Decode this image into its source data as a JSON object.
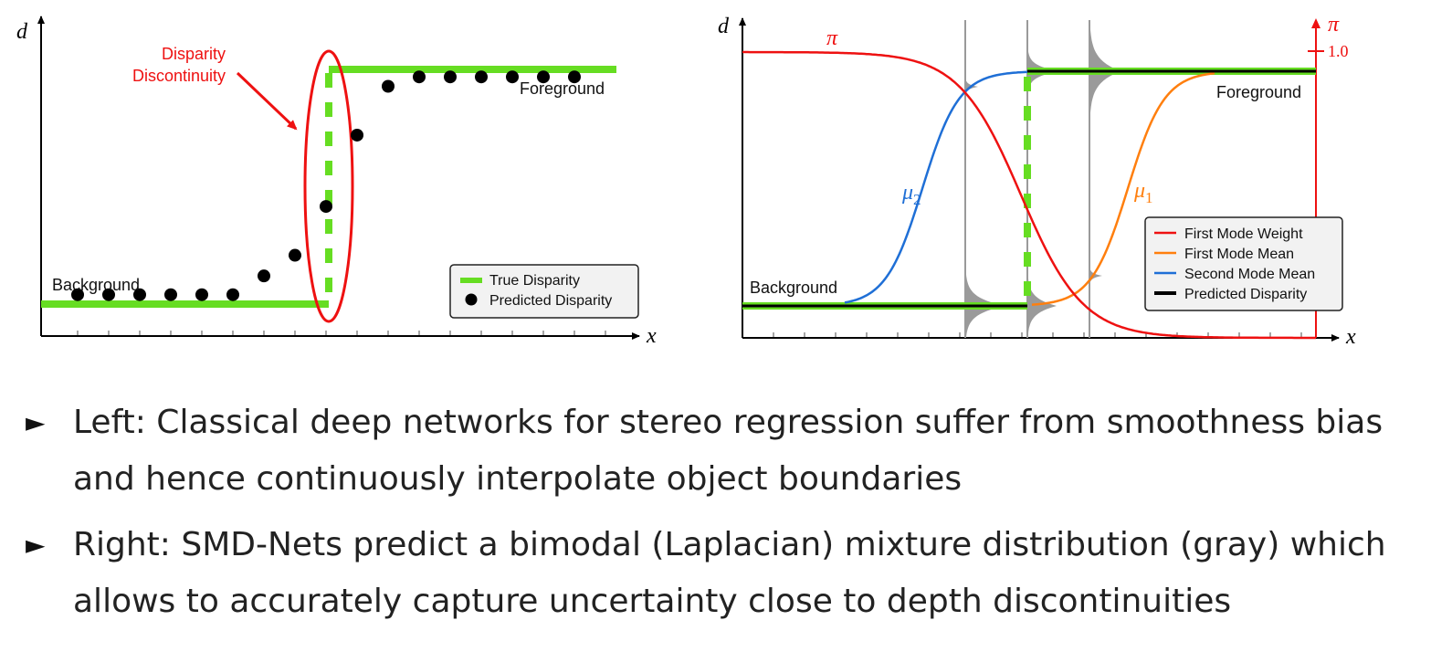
{
  "left": {
    "y_axis": "d",
    "x_axis": "x",
    "background_label": "Background",
    "foreground_label": "Foreground",
    "annotation_line1": "Disparity",
    "annotation_line2": "Discontinuity",
    "legend": [
      "True Disparity",
      "Predicted Disparity"
    ],
    "predicted_points": [
      {
        "x": 1,
        "y": 0.05
      },
      {
        "x": 2,
        "y": 0.05
      },
      {
        "x": 3,
        "y": 0.05
      },
      {
        "x": 4,
        "y": 0.05
      },
      {
        "x": 5,
        "y": 0.05
      },
      {
        "x": 6,
        "y": 0.05
      },
      {
        "x": 7,
        "y": 0.15
      },
      {
        "x": 8,
        "y": 0.26
      },
      {
        "x": 9,
        "y": 0.52
      },
      {
        "x": 10,
        "y": 0.9
      },
      {
        "x": 11,
        "y": 1.16
      },
      {
        "x": 12,
        "y": 1.21
      },
      {
        "x": 13,
        "y": 1.21
      },
      {
        "x": 14,
        "y": 1.21
      },
      {
        "x": 15,
        "y": 1.21
      },
      {
        "x": 16,
        "y": 1.21
      },
      {
        "x": 17,
        "y": 1.21
      }
    ]
  },
  "right": {
    "y_axis": "d",
    "x_axis": "x",
    "pi_axis": "π",
    "pi_tick": "1.0",
    "pi_label": "π",
    "mu1_label": "μ",
    "mu1_sub": "1",
    "mu2_label": "μ",
    "mu2_sub": "2",
    "background_label": "Background",
    "foreground_label": "Foreground",
    "legend": [
      "First Mode Weight",
      "First Mode Mean",
      "Second Mode Mean",
      "Predicted Disparity"
    ]
  },
  "colors": {
    "true_disparity": "#66dd22",
    "first_mode_weight": "#ee1111",
    "first_mode_mean": "#ff7f0e",
    "second_mode_mean": "#1f6fd6",
    "predicted": "#000000",
    "mixture": "#9a9a9a",
    "annotation": "#ee1111"
  },
  "bullets": [
    "Left: Classical deep networks for stereo regression suffer from smoothness bias and hence continuously interpolate object boundaries",
    "Right: SMD-Nets predict a bimodal (Laplacian) mixture distribution (gray) which allows to accurately capture uncertainty close to depth discontinuities"
  ]
}
